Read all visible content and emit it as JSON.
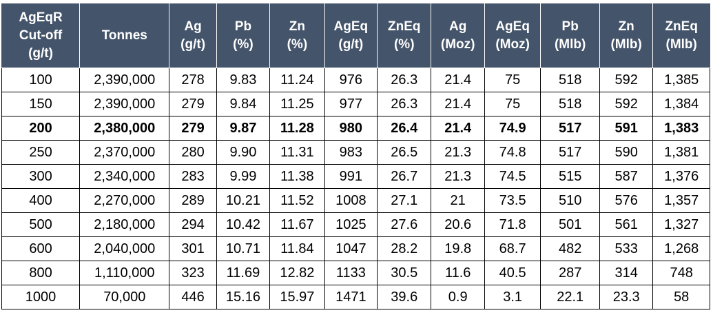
{
  "headers": [
    [
      "AgEqR",
      "Cut-off",
      "(g/t)"
    ],
    [
      "Tonnes"
    ],
    [
      "Ag",
      "(g/t)"
    ],
    [
      "Pb",
      "(%)"
    ],
    [
      "Zn",
      "(%)"
    ],
    [
      "AgEq",
      "(g/t)"
    ],
    [
      "ZnEq",
      "(%)"
    ],
    [
      "Ag",
      "(Moz)"
    ],
    [
      "AgEq",
      "(Moz)"
    ],
    [
      "Pb",
      "(Mlb)"
    ],
    [
      "Zn",
      "(Mlb)"
    ],
    [
      "ZnEq",
      "(Mlb)"
    ]
  ],
  "rows": [
    {
      "bold": false,
      "cells": [
        "100",
        "2,390,000",
        "278",
        "9.83",
        "11.24",
        "976",
        "26.3",
        "21.4",
        "75",
        "518",
        "592",
        "1,385"
      ]
    },
    {
      "bold": false,
      "cells": [
        "150",
        "2,390,000",
        "279",
        "9.84",
        "11.25",
        "977",
        "26.3",
        "21.4",
        "75",
        "518",
        "592",
        "1,384"
      ]
    },
    {
      "bold": true,
      "cells": [
        "200",
        "2,380,000",
        "279",
        "9.87",
        "11.28",
        "980",
        "26.4",
        "21.4",
        "74.9",
        "517",
        "591",
        "1,383"
      ]
    },
    {
      "bold": false,
      "cells": [
        "250",
        "2,370,000",
        "280",
        "9.90",
        "11.31",
        "983",
        "26.5",
        "21.3",
        "74.8",
        "517",
        "590",
        "1,381"
      ]
    },
    {
      "bold": false,
      "cells": [
        "300",
        "2,340,000",
        "283",
        "9.99",
        "11.38",
        "991",
        "26.7",
        "21.3",
        "74.5",
        "515",
        "587",
        "1,376"
      ]
    },
    {
      "bold": false,
      "cells": [
        "400",
        "2,270,000",
        "289",
        "10.21",
        "11.52",
        "1008",
        "27.1",
        "21",
        "73.5",
        "510",
        "576",
        "1,357"
      ]
    },
    {
      "bold": false,
      "cells": [
        "500",
        "2,180,000",
        "294",
        "10.42",
        "11.67",
        "1025",
        "27.6",
        "20.6",
        "71.8",
        "501",
        "561",
        "1,327"
      ]
    },
    {
      "bold": false,
      "cells": [
        "600",
        "2,040,000",
        "301",
        "10.71",
        "11.84",
        "1047",
        "28.2",
        "19.8",
        "68.7",
        "482",
        "533",
        "1,268"
      ]
    },
    {
      "bold": false,
      "cells": [
        "800",
        "1,110,000",
        "323",
        "11.69",
        "12.82",
        "1133",
        "30.5",
        "11.6",
        "40.5",
        "287",
        "314",
        "748"
      ]
    },
    {
      "bold": false,
      "cells": [
        "1000",
        "70,000",
        "446",
        "15.16",
        "15.97",
        "1471",
        "39.6",
        "0.9",
        "3.1",
        "22.1",
        "23.3",
        "58"
      ]
    }
  ]
}
